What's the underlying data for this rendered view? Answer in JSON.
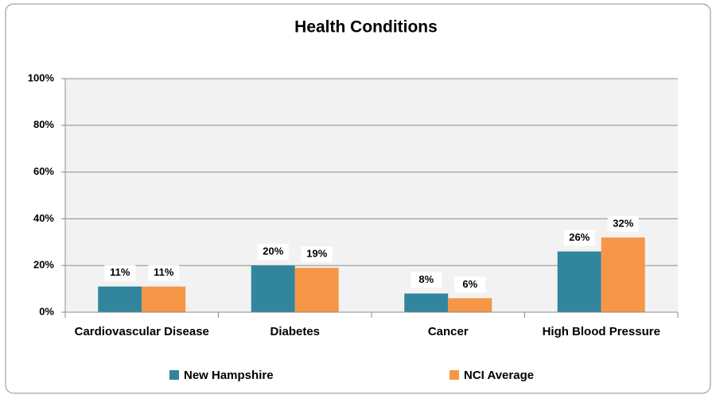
{
  "chart_data": {
    "type": "bar",
    "title": "Health Conditions",
    "categories": [
      "Cardiovascular Disease",
      "Diabetes",
      "Cancer",
      "High Blood Pressure"
    ],
    "series": [
      {
        "name": "New Hampshire",
        "color": "#31859c",
        "values": [
          11,
          20,
          8,
          26
        ],
        "value_labels": [
          "11%",
          "20%",
          "8%",
          "26%"
        ]
      },
      {
        "name": "NCI Average",
        "color": "#f79646",
        "values": [
          11,
          19,
          6,
          32
        ],
        "value_labels": [
          "11%",
          "19%",
          "6%",
          "32%"
        ]
      }
    ],
    "ylim": [
      0,
      100
    ],
    "yticks": [
      {
        "value": 0,
        "label": "0%"
      },
      {
        "value": 20,
        "label": "20%"
      },
      {
        "value": 40,
        "label": "40%"
      },
      {
        "value": 60,
        "label": "60%"
      },
      {
        "value": 80,
        "label": "80%"
      },
      {
        "value": 100,
        "label": "100%"
      }
    ],
    "grid": true,
    "legend": "bottom"
  }
}
